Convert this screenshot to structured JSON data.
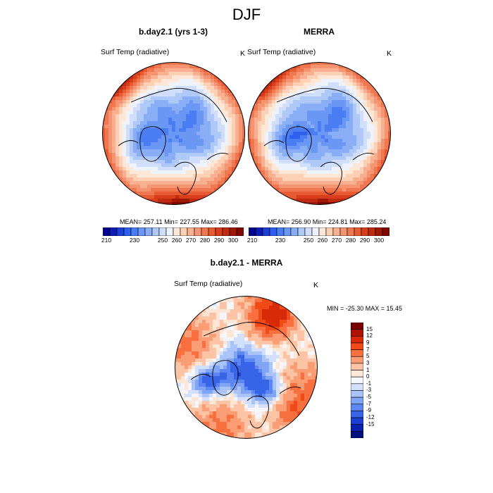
{
  "figure": {
    "title": "DJF"
  },
  "panels": [
    {
      "title": "b.day2.1 (yrs 1-3)",
      "variable": "Surf Temp (radiative)",
      "units": "K",
      "stats": "MEAN= 257.11  Min= 227.55  Max= 286.46"
    },
    {
      "title": "MERRA",
      "variable": "Surf Temp (radiative)",
      "units": "K",
      "stats": "MEAN= 256.90  Min= 224.81  Max= 285.24"
    },
    {
      "title": "b.day2.1 - MERRA",
      "variable": "Surf Temp (radiative)",
      "units": "K",
      "stats": "MIN = -25.30 MAX =  15.45"
    }
  ],
  "chart_data": [
    {
      "type": "heatmap",
      "projection": "north polar stereographic",
      "title": "b.day2.1 (yrs 1-3)",
      "variable": "Surf Temp (radiative)",
      "units": "K",
      "mean": 257.11,
      "min": 227.55,
      "max": 286.46,
      "colorbar_levels": [
        210,
        215,
        220,
        225,
        230,
        235,
        240,
        245,
        250,
        255,
        260,
        265,
        270,
        275,
        280,
        285,
        290,
        295,
        300,
        305
      ],
      "colorbar_tick_labels": [
        "210",
        "230",
        "250",
        "260",
        "270",
        "280",
        "290",
        "300"
      ],
      "colors": [
        "#000090",
        "#0c1cb4",
        "#1e3ed8",
        "#2e5ef0",
        "#4a7cf4",
        "#6a96f4",
        "#8aaef6",
        "#aec8f8",
        "#d0defa",
        "#eef2fb",
        "#fde8d8",
        "#fbd0b4",
        "#f8b090",
        "#f49470",
        "#f07850",
        "#e85a32",
        "#d83e1c",
        "#c02a10",
        "#a01806",
        "#800800"
      ]
    },
    {
      "type": "heatmap",
      "projection": "north polar stereographic",
      "title": "MERRA",
      "variable": "Surf Temp (radiative)",
      "units": "K",
      "mean": 256.9,
      "min": 224.81,
      "max": 285.24,
      "colorbar_levels": [
        210,
        215,
        220,
        225,
        230,
        235,
        240,
        245,
        250,
        255,
        260,
        265,
        270,
        275,
        280,
        285,
        290,
        295,
        300,
        305
      ],
      "colorbar_tick_labels": [
        "210",
        "230",
        "250",
        "260",
        "270",
        "280",
        "290",
        "300"
      ],
      "colors": [
        "#000090",
        "#0c1cb4",
        "#1e3ed8",
        "#2e5ef0",
        "#4a7cf4",
        "#6a96f4",
        "#8aaef6",
        "#aec8f8",
        "#d0defa",
        "#eef2fb",
        "#fde8d8",
        "#fbd0b4",
        "#f8b090",
        "#f49470",
        "#f07850",
        "#e85a32",
        "#d83e1c",
        "#c02a10",
        "#a01806",
        "#800800"
      ]
    },
    {
      "type": "heatmap",
      "projection": "north polar stereographic",
      "title": "b.day2.1 - MERRA",
      "variable": "Surf Temp (radiative)",
      "units": "K",
      "min": -25.3,
      "max": 15.45,
      "colorbar_tick_labels": [
        "15",
        "12",
        "9",
        "7",
        "5",
        "3",
        "1",
        "0",
        "-1",
        "-3",
        "-5",
        "-7",
        "-9",
        "-12",
        "-15"
      ],
      "colors": [
        "#7a0000",
        "#b01000",
        "#d82a08",
        "#f04a18",
        "#f87040",
        "#fa9c74",
        "#fcc4a4",
        "#fee6d6",
        "#f4f6fc",
        "#d2e0fc",
        "#aac4fa",
        "#80a4f6",
        "#5c86f2",
        "#3864e8",
        "#1c3ed4",
        "#0c20b0",
        "#00107c"
      ]
    }
  ]
}
